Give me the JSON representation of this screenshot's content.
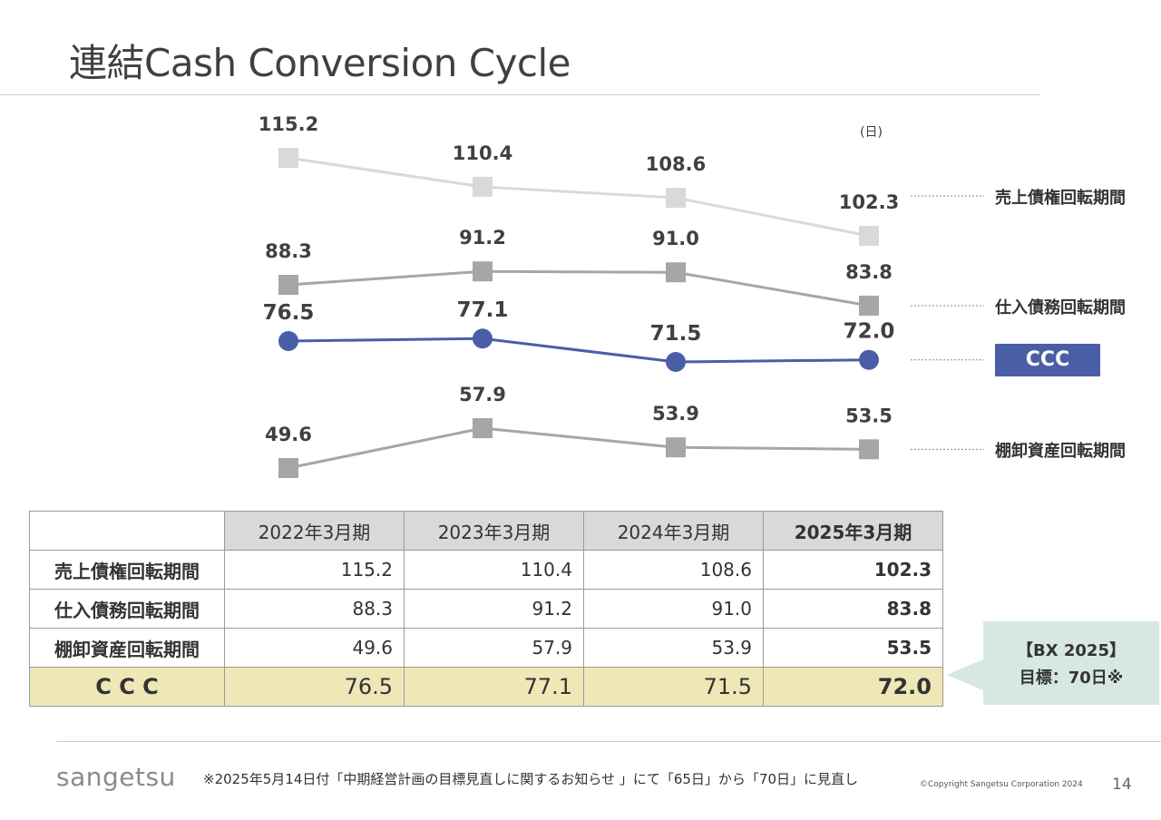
{
  "page": {
    "title": "連結Cash Conversion Cycle",
    "unit": "(日)",
    "callout_line1": "【BX 2025】",
    "callout_line2": "目標：70日※",
    "footnote": "※2025年5月14日付「中期経営計画の目標見直しに関するお知らせ 」にて「65日」から「70日」に見直し",
    "logo": "sangetsu",
    "copyright": "©Copyright Sangetsu Corporation 2024",
    "page_number": "14"
  },
  "chart_data": {
    "type": "line",
    "categories": [
      "2022年3月期",
      "2023年3月期",
      "2024年3月期",
      "2025年3月期"
    ],
    "series": [
      {
        "name": "売上債権回転期間",
        "values": [
          115.2,
          110.4,
          108.6,
          102.3
        ],
        "color": "#d9d9d9",
        "marker": "square"
      },
      {
        "name": "仕入債務回転期間",
        "values": [
          88.3,
          91.2,
          91.0,
          83.8
        ],
        "color": "#a6a6a6",
        "marker": "square"
      },
      {
        "name": "CCC",
        "values": [
          76.5,
          77.1,
          71.5,
          72.0
        ],
        "color": "#4a5ea8",
        "marker": "circle"
      },
      {
        "name": "棚卸資産回転期間",
        "values": [
          49.6,
          57.9,
          53.9,
          53.5
        ],
        "color": "#a6a6a6",
        "marker": "square"
      }
    ],
    "value_labels": [
      [
        "115.2",
        "110.4",
        "108.6",
        "102.3"
      ],
      [
        "88.3",
        "91.2",
        "91.0",
        "83.8"
      ],
      [
        "76.5",
        "77.1",
        "71.5",
        "72.0"
      ],
      [
        "49.6",
        "57.9",
        "53.9",
        "53.5"
      ]
    ],
    "xlabel": "",
    "ylabel": "",
    "grid": false,
    "legend": "right"
  },
  "table": {
    "headers": [
      "2022年3月期",
      "2023年3月期",
      "2024年3月期",
      "2025年3月期"
    ],
    "rows": [
      {
        "label": "売上債権回転期間",
        "values": [
          "115.2",
          "110.4",
          "108.6",
          "102.3"
        ]
      },
      {
        "label": "仕入債務回転期間",
        "values": [
          "88.3",
          "91.2",
          "91.0",
          "83.8"
        ]
      },
      {
        "label": "棚卸資産回転期間",
        "values": [
          "49.6",
          "57.9",
          "53.9",
          "53.5"
        ]
      },
      {
        "label": "C C C",
        "values": [
          "76.5",
          "77.1",
          "71.5",
          "72.0"
        ]
      }
    ]
  }
}
